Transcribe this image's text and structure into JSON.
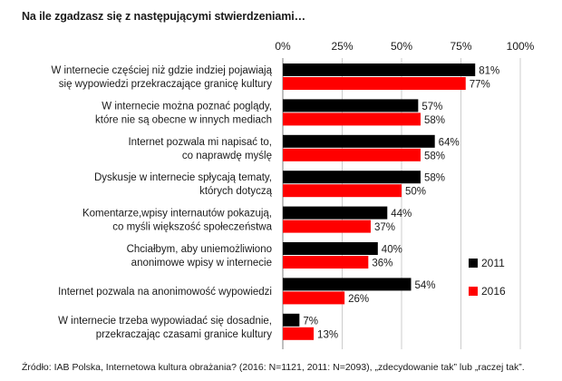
{
  "header": {
    "title": "Na ile zgadzasz się z następującymi stwierdzeniami…"
  },
  "footer": {
    "source": "Źródło: IAB Polska, Internetowa kultura obrażania? (2016: N=1121, 2011: N=2093), „zdecydowanie tak” lub „raczej tak”."
  },
  "colors": {
    "series_2011": "#000000",
    "series_2016": "#ff0000",
    "grid": "#cccccc"
  },
  "chart_data": {
    "type": "bar",
    "orientation": "horizontal",
    "title": "Na ile zgadzasz się z następującymi stwierdzeniami…",
    "xlim": [
      0,
      100
    ],
    "ticks": [
      "0%",
      "25%",
      "50%",
      "75%",
      "100%"
    ],
    "ticks_position": "top",
    "grid": true,
    "legend_position": "right",
    "categories": [
      [
        "W internecie częściej niż gdzie indziej pojawiają",
        "się wypowiedzi przekraczające granicę kultury"
      ],
      [
        "W internecie można poznać poglądy,",
        "które nie są obecne w innych mediach"
      ],
      [
        "Internet pozwala mi napisać to,",
        "co naprawdę myślę"
      ],
      [
        "Dyskusje w internecie spłycają tematy,",
        "których dotyczą"
      ],
      [
        "Komentarze,wpisy internautów pokazują,",
        "co myśli większość społeczeństwa"
      ],
      [
        "Chciałbym, aby uniemożliwiono",
        "anonimowe wpisy w internecie"
      ],
      [
        "Internet pozwala na anonimowość wypowiedzi"
      ],
      [
        "W internecie trzeba wypowiadać się dosadnie,",
        "przekraczając czasami granice kultury"
      ]
    ],
    "series": [
      {
        "name": "2011",
        "values": [
          81,
          57,
          64,
          58,
          44,
          40,
          54,
          7
        ]
      },
      {
        "name": "2016",
        "values": [
          77,
          58,
          58,
          50,
          37,
          36,
          26,
          13
        ]
      }
    ],
    "value_suffix": "%"
  }
}
